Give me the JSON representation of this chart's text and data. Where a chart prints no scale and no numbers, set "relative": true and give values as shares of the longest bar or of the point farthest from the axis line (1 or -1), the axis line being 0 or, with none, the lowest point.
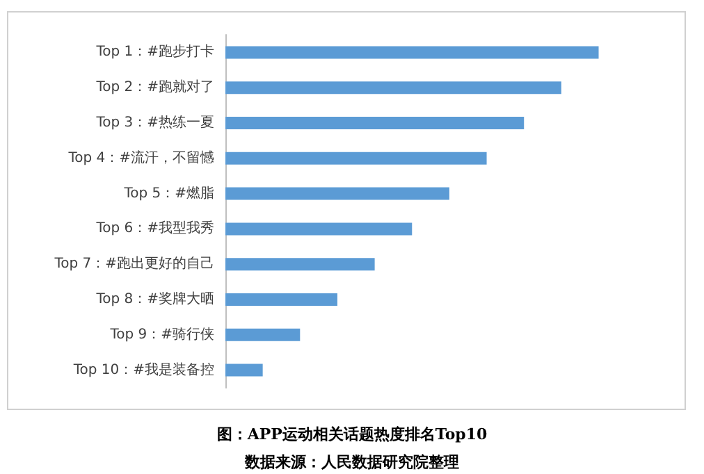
{
  "chart_data": {
    "type": "bar",
    "orientation": "horizontal",
    "relative": true,
    "title": "图：APP运动相关话题热度排名Top10",
    "annotations": [
      "数据来源：人民数据研究院整理"
    ],
    "categories": [
      "Top 1：#跑步打卡",
      "Top 2：#跑就对了",
      "Top 3：#热练一夏",
      "Top 4：#流汗，不留憾",
      "Top 5：#燃脂",
      "Top 6：#我型我秀",
      "Top 7：#跑出更好的自己",
      "Top 8：#奖牌大晒",
      "Top 9：#骑行侠",
      "Top 10：#我是装备控"
    ],
    "values": [
      1,
      0.9,
      0.8,
      0.7,
      0.6,
      0.5,
      0.4,
      0.3,
      0.2,
      0.1
    ],
    "color": "#5b9bd5"
  }
}
